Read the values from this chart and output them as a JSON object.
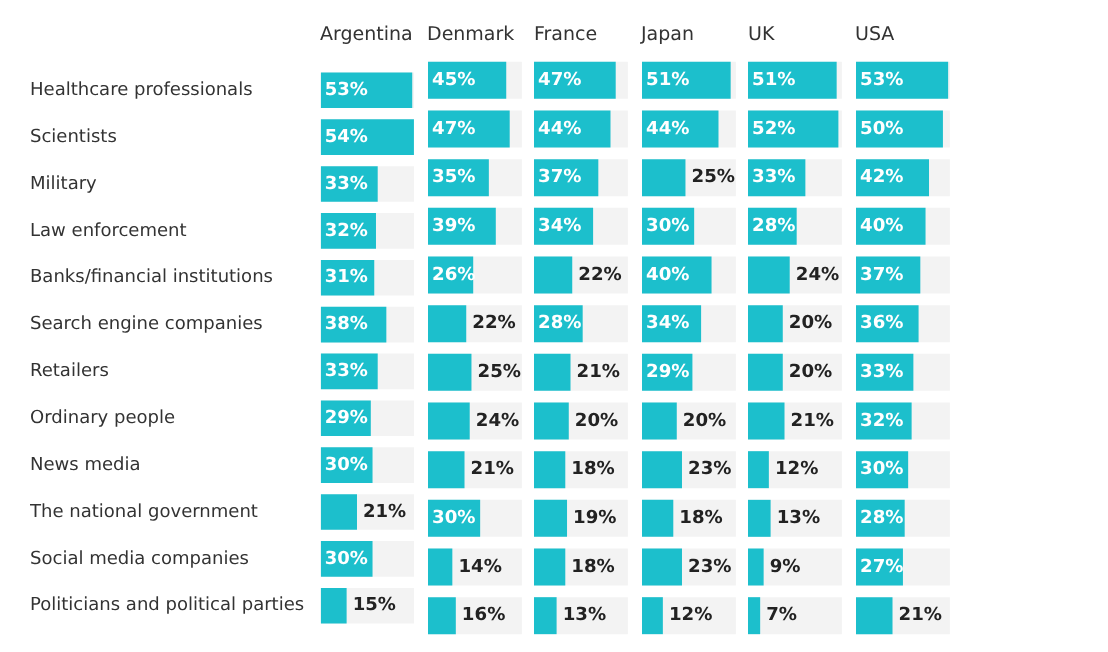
{
  "chart_data": [
    {
      "type": "bar",
      "orientation": "horizontal",
      "title": "Argentina",
      "categories": [
        "Healthcare professionals",
        "Scientists",
        "Military",
        "Law enforcement",
        "Banks/financial institutions",
        "Search engine companies",
        "Retailers",
        "Ordinary people",
        "News media",
        "The national government",
        "Social media companies",
        "Politicians and political parties"
      ],
      "values": [
        53,
        54,
        33,
        32,
        31,
        38,
        33,
        29,
        30,
        21,
        30,
        15
      ],
      "value_labels": [
        "53%",
        "54%",
        "33%",
        "32%",
        "31%",
        "38%",
        "33%",
        "29%",
        "30%",
        "21%",
        "30%",
        "15%"
      ],
      "color": "#1cbfcc",
      "tick_labels": "y"
    },
    {
      "type": "bar",
      "orientation": "horizontal",
      "title": "Denmark",
      "categories": [
        null,
        null,
        null,
        null,
        null,
        null,
        null,
        null,
        null,
        null,
        null,
        null
      ],
      "values": [
        45,
        47,
        35,
        39,
        26,
        22,
        25,
        24,
        21,
        30,
        14,
        16
      ],
      "value_labels": [
        "45%",
        "47%",
        "35%",
        "39%",
        "26%",
        "22%",
        "25%",
        "24%",
        "21%",
        "30%",
        "14%",
        "16%"
      ],
      "color": "#1cbfcc",
      "tick_labels": false
    },
    {
      "type": "bar",
      "orientation": "horizontal",
      "title": "France",
      "categories": [
        null,
        null,
        null,
        null,
        null,
        null,
        null,
        null,
        null,
        null,
        null,
        null
      ],
      "values": [
        47,
        44,
        37,
        34,
        22,
        28,
        21,
        20,
        18,
        19,
        18,
        13
      ],
      "value_labels": [
        "47%",
        "44%",
        "37%",
        "34%",
        "22%",
        "28%",
        "21%",
        "20%",
        "18%",
        "19%",
        "18%",
        "13%"
      ],
      "color": "#1cbfcc",
      "tick_labels": false
    },
    {
      "type": "bar",
      "orientation": "horizontal",
      "title": "Japan",
      "categories": [
        null,
        null,
        null,
        null,
        null,
        null,
        null,
        null,
        null,
        null,
        null,
        null
      ],
      "values": [
        51,
        44,
        25,
        30,
        40,
        34,
        29,
        20,
        23,
        18,
        23,
        12
      ],
      "value_labels": [
        "51%",
        "44%",
        "25%",
        "30%",
        "40%",
        "34%",
        "29%",
        "20%",
        "23%",
        "18%",
        "23%",
        "12%"
      ],
      "color": "#1cbfcc",
      "tick_labels": false
    },
    {
      "type": "bar",
      "orientation": "horizontal",
      "title": "UK",
      "categories": [
        null,
        null,
        null,
        null,
        null,
        null,
        null,
        null,
        null,
        null,
        null,
        null
      ],
      "values": [
        51,
        52,
        33,
        28,
        24,
        20,
        20,
        21,
        12,
        13,
        9,
        7
      ],
      "value_labels": [
        "51%",
        "52%",
        "33%",
        "28%",
        "24%",
        "20%",
        "20%",
        "21%",
        "12%",
        "13%",
        "9%",
        "7%"
      ],
      "color": "#1cbfcc",
      "tick_labels": false
    },
    {
      "type": "bar",
      "orientation": "horizontal",
      "title": "USA",
      "categories": [
        null,
        null,
        null,
        null,
        null,
        null,
        null,
        null,
        null,
        null,
        null,
        null
      ],
      "values": [
        53,
        50,
        42,
        40,
        37,
        36,
        33,
        32,
        30,
        28,
        27,
        21
      ],
      "value_labels": [
        "53%",
        "50%",
        "42%",
        "40%",
        "37%",
        "36%",
        "33%",
        "32%",
        "30%",
        "28%",
        "27%",
        "21%"
      ],
      "color": "#1cbfcc",
      "tick_labels": false
    }
  ]
}
